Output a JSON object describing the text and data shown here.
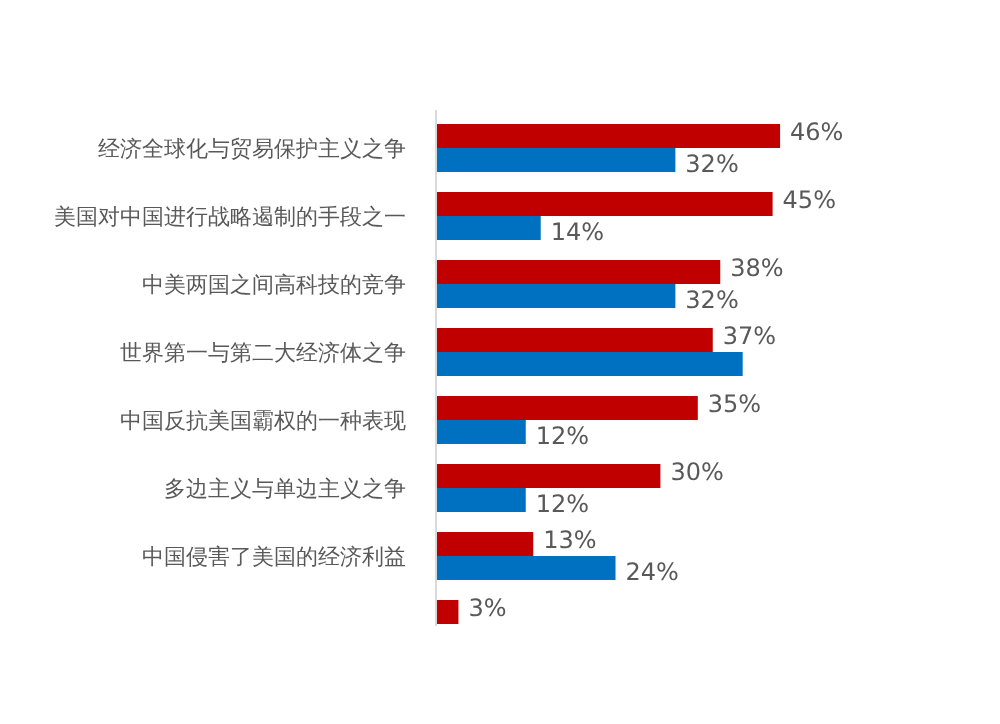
{
  "chart_data": {
    "type": "bar",
    "orientation": "horizontal",
    "categories": [
      "经济全球化与贸易保护主义之争",
      "美国对中国进行战略遏制的手段之一",
      "中美两国之间高科技的竞争",
      "世界第一与第二大经济体之争",
      "中国反抗美国霸权的一种表现",
      "多边主义与单边主义之争",
      "中国侵害了美国的经济利益",
      null
    ],
    "series": [
      {
        "color": "#c00000",
        "values": [
          46,
          45,
          38,
          37,
          35,
          30,
          13,
          3
        ],
        "value_labels": [
          "46%",
          "45%",
          "38%",
          "37%",
          "35%",
          "30%",
          "13%",
          "3%"
        ]
      },
      {
        "color": "#0070c0",
        "values": [
          32,
          14,
          32,
          41,
          12,
          12,
          24,
          null
        ],
        "value_labels": [
          "32%",
          "14%",
          "32%",
          null,
          "12%",
          "12%",
          "24%",
          null
        ]
      }
    ]
  }
}
